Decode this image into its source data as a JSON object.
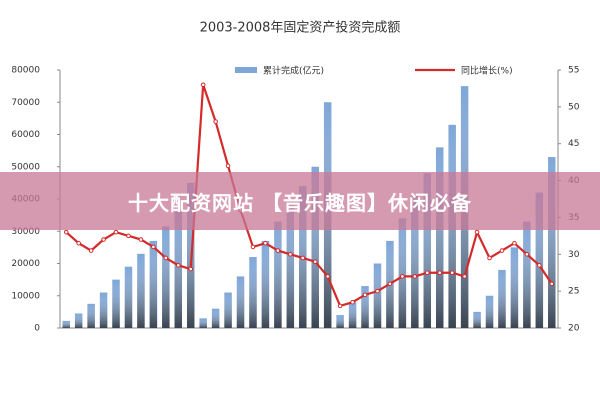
{
  "chart_data": {
    "type": "bar_line",
    "title": "2003-2008年固定资产投资完成额",
    "categories": [
      null,
      null,
      null,
      null,
      null,
      null,
      null,
      null,
      null,
      null,
      null,
      null,
      null,
      null,
      null,
      null,
      null,
      null,
      null,
      null,
      null,
      null,
      null,
      null,
      null,
      null,
      null,
      null,
      null,
      null,
      null,
      null,
      null,
      null,
      null,
      null,
      null,
      null,
      null,
      null
    ],
    "series": [
      {
        "name": "累计完成(亿元)",
        "color": "#7ea6d8",
        "type": "bar",
        "values": [
          2200,
          4500,
          7500,
          11000,
          15000,
          19000,
          23000,
          27000,
          31500,
          36000,
          45000,
          3000,
          6000,
          11000,
          16000,
          22000,
          27000,
          33000,
          38000,
          44000,
          50000,
          70000,
          4000,
          8000,
          13000,
          20000,
          27000,
          34000,
          41000,
          48000,
          56000,
          63000,
          75000,
          5000,
          10000,
          18000,
          25000,
          33000,
          42000,
          53000
        ]
      },
      {
        "name": "同比增长(%)",
        "color": "#d42a2a",
        "type": "line",
        "axis": "y2",
        "values": [
          33,
          31.5,
          30.5,
          32,
          33,
          32.5,
          32,
          31,
          29.5,
          28.5,
          28,
          53,
          48,
          42,
          36,
          31,
          31.5,
          30.5,
          30,
          29.5,
          29,
          27,
          23,
          23.5,
          24.5,
          25,
          26,
          27,
          27,
          27.5,
          27.5,
          27.5,
          27,
          33,
          29.5,
          30.5,
          31.5,
          30,
          28.5,
          26
        ]
      }
    ],
    "ylim": [
      0,
      80000
    ],
    "yticks": [
      0,
      10000,
      20000,
      30000,
      40000,
      50000,
      60000,
      70000,
      80000
    ],
    "y2lim": [
      20,
      55
    ],
    "y2ticks": [
      20,
      25,
      30,
      35,
      40,
      45,
      50,
      55
    ]
  },
  "banner": {
    "text": "十大配资网站 【音乐趣图】休闲必备"
  }
}
